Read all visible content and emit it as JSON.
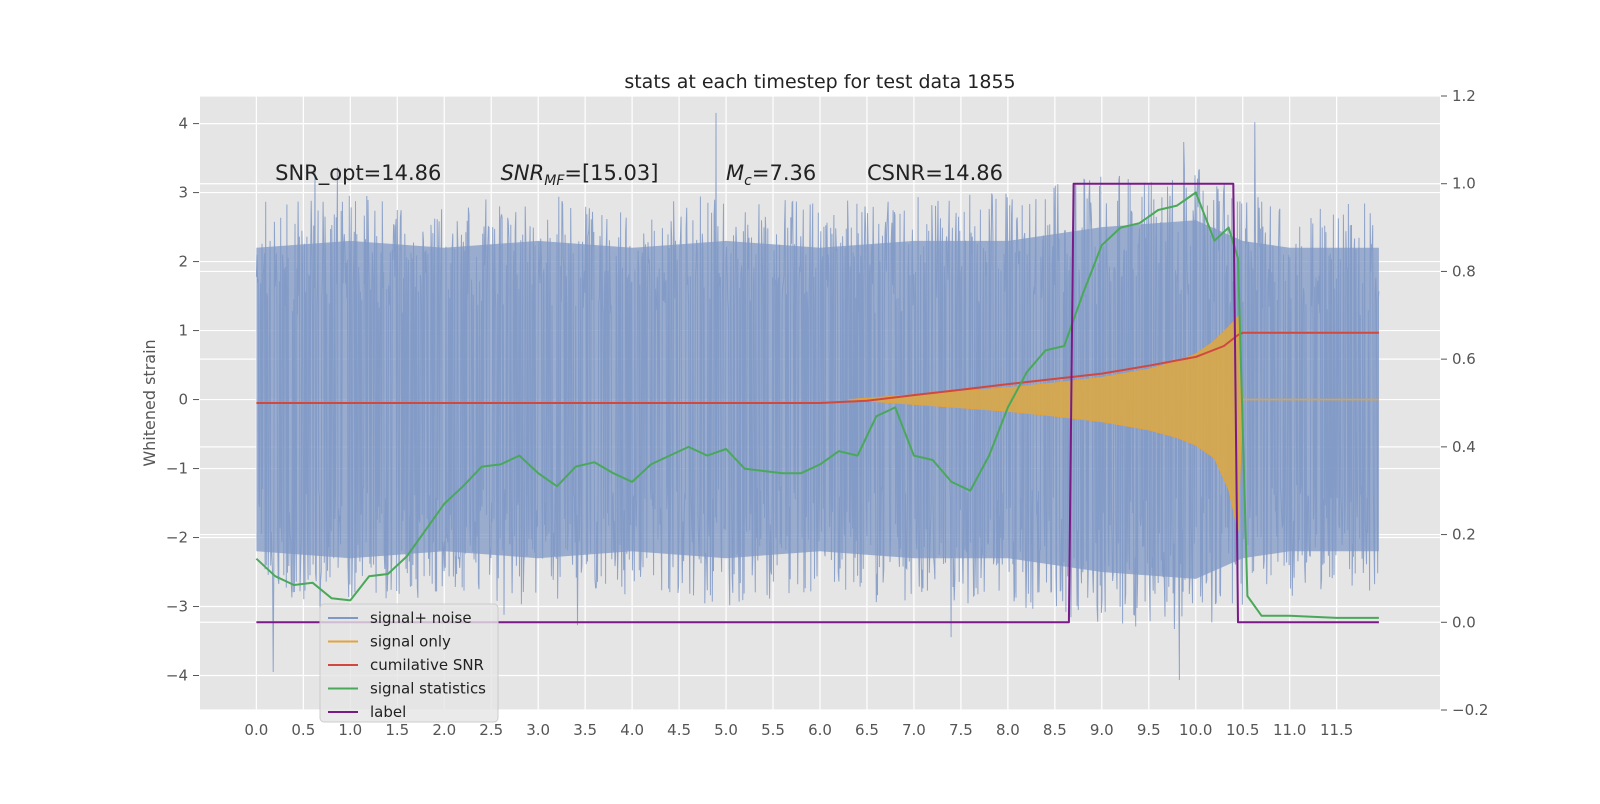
{
  "chart_data": {
    "type": "line",
    "title": "stats at each timestep for test data 1855",
    "ylabel": "Whitened strain",
    "xlabel": "",
    "xlim": [
      -0.6,
      12.6
    ],
    "ylim": [
      -4.5,
      4.4
    ],
    "y2lim": [
      -0.2,
      1.2
    ],
    "x_ticks": [
      "0.0",
      "0.5",
      "1.0",
      "1.5",
      "2.0",
      "2.5",
      "3.0",
      "3.5",
      "4.0",
      "4.5",
      "5.0",
      "5.5",
      "6.0",
      "6.5",
      "7.0",
      "7.5",
      "8.0",
      "8.5",
      "9.0",
      "9.5",
      "10.0",
      "10.5",
      "11.0",
      "11.5"
    ],
    "y_ticks": [
      "4",
      "3",
      "2",
      "1",
      "0",
      "−1",
      "−2",
      "−3",
      "−4"
    ],
    "y2_ticks": [
      "1.2",
      "1.0",
      "0.8",
      "0.6",
      "0.4",
      "0.2",
      "0.0",
      "−0.2"
    ],
    "grid": true,
    "legend_position": "bottom-left",
    "annotations": [
      {
        "text": "SNR_opt=14.86",
        "x": 0.2,
        "y": 3.3
      },
      {
        "text": "SNR_MF=[15.03]",
        "x": 2.6,
        "y": 3.3
      },
      {
        "text": "M_c=7.36",
        "x": 5.0,
        "y": 3.3
      },
      {
        "text": "CSNR=14.86",
        "x": 6.5,
        "y": 3.3
      }
    ],
    "series": [
      {
        "name": "signal+ noise",
        "axis": "left",
        "color": "#7f98c6",
        "envelope_x": [
          0.0,
          1.0,
          2.0,
          3.0,
          4.0,
          5.0,
          6.0,
          7.0,
          8.0,
          9.0,
          10.0,
          10.5,
          11.0,
          11.95
        ],
        "envelope_upper": [
          2.2,
          2.3,
          2.2,
          2.3,
          2.2,
          2.3,
          2.2,
          2.3,
          2.3,
          2.5,
          2.6,
          2.3,
          2.2,
          2.2
        ],
        "envelope_lower": [
          -2.2,
          -2.3,
          -2.2,
          -2.3,
          -2.2,
          -2.3,
          -2.2,
          -2.3,
          -2.3,
          -2.5,
          -2.6,
          -2.3,
          -2.2,
          -2.2
        ]
      },
      {
        "name": "signal only",
        "axis": "left",
        "color": "#e3a33c",
        "x": [
          6.3,
          6.8,
          7.5,
          8.0,
          8.5,
          9.0,
          9.5,
          9.8,
          10.0,
          10.2,
          10.35,
          10.45,
          10.5,
          11.95
        ],
        "upper": [
          0.0,
          0.05,
          0.12,
          0.17,
          0.24,
          0.32,
          0.44,
          0.55,
          0.66,
          0.85,
          1.05,
          1.2,
          0.0,
          0.0
        ],
        "lower": [
          0.0,
          -0.05,
          -0.12,
          -0.17,
          -0.24,
          -0.32,
          -0.44,
          -0.55,
          -0.66,
          -0.85,
          -1.3,
          -1.9,
          0.0,
          0.0
        ]
      },
      {
        "name": "cumilative SNR",
        "axis": "right",
        "color": "#d1483e",
        "x": [
          0.0,
          1.0,
          2.0,
          3.0,
          4.0,
          5.0,
          6.0,
          6.5,
          7.0,
          7.5,
          8.0,
          8.5,
          9.0,
          9.5,
          10.0,
          10.3,
          10.45,
          10.5,
          11.95
        ],
        "y": [
          0.5,
          0.5,
          0.5,
          0.5,
          0.5,
          0.5,
          0.5,
          0.505,
          0.518,
          0.53,
          0.543,
          0.555,
          0.567,
          0.585,
          0.605,
          0.63,
          0.655,
          0.66,
          0.66
        ]
      },
      {
        "name": "signal statistics",
        "axis": "right",
        "color": "#4aa85a",
        "x": [
          0.0,
          0.2,
          0.4,
          0.6,
          0.8,
          1.0,
          1.2,
          1.4,
          1.6,
          1.8,
          2.0,
          2.2,
          2.4,
          2.6,
          2.8,
          3.0,
          3.2,
          3.4,
          3.6,
          3.8,
          4.0,
          4.2,
          4.4,
          4.6,
          4.8,
          5.0,
          5.2,
          5.4,
          5.6,
          5.8,
          6.0,
          6.2,
          6.4,
          6.6,
          6.8,
          7.0,
          7.2,
          7.4,
          7.6,
          7.8,
          8.0,
          8.2,
          8.4,
          8.6,
          8.8,
          9.0,
          9.2,
          9.4,
          9.6,
          9.8,
          10.0,
          10.2,
          10.35,
          10.45,
          10.55,
          10.7,
          11.0,
          11.5,
          11.95
        ],
        "y": [
          0.145,
          0.105,
          0.085,
          0.09,
          0.055,
          0.05,
          0.105,
          0.11,
          0.15,
          0.21,
          0.27,
          0.31,
          0.355,
          0.36,
          0.38,
          0.34,
          0.31,
          0.355,
          0.365,
          0.34,
          0.32,
          0.36,
          0.38,
          0.4,
          0.38,
          0.395,
          0.35,
          0.345,
          0.34,
          0.34,
          0.36,
          0.39,
          0.38,
          0.47,
          0.49,
          0.38,
          0.37,
          0.32,
          0.3,
          0.38,
          0.49,
          0.57,
          0.62,
          0.63,
          0.75,
          0.86,
          0.9,
          0.91,
          0.94,
          0.95,
          0.98,
          0.87,
          0.9,
          0.83,
          0.06,
          0.015,
          0.015,
          0.01,
          0.01
        ]
      },
      {
        "name": "label",
        "axis": "right",
        "color": "#7a1a87",
        "x": [
          0.0,
          8.65,
          8.7,
          10.4,
          10.45,
          11.95
        ],
        "y": [
          0.0,
          0.0,
          1.0,
          1.0,
          0.0,
          0.0
        ]
      }
    ]
  }
}
